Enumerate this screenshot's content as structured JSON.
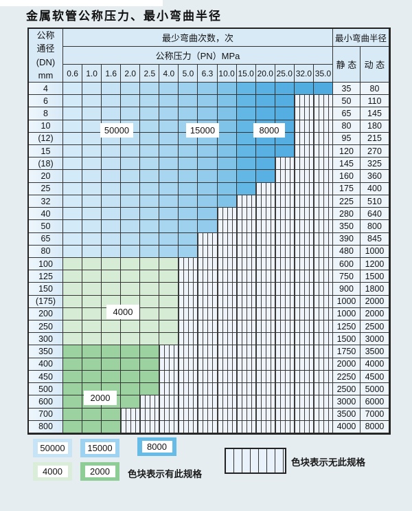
{
  "page": {
    "title": "金属软管公称压力、最小弯曲半径"
  },
  "table": {
    "left_header": {
      "lines": [
        "公称",
        "通径",
        "(DN)",
        "mm"
      ]
    },
    "cycles_header": "最少弯曲次数，次",
    "pressure_header": "公称压力（PN）MPa",
    "radius_header": "最小弯曲半径",
    "static_label": "静 态",
    "dynamic_label": "动 态",
    "pressure_columns": [
      "0.6",
      "1.0",
      "1.6",
      "2.0",
      "2.5",
      "4.0",
      "5.0",
      "6.3",
      "10.0",
      "15.0",
      "20.0",
      "25.0",
      "32.0",
      "35.0"
    ],
    "rows": [
      {
        "dn": "4",
        "static": "35",
        "dynamic": "80",
        "colored_through": 13,
        "zone": "blue"
      },
      {
        "dn": "6",
        "static": "50",
        "dynamic": "110",
        "colored_through": 11,
        "zone": "blue"
      },
      {
        "dn": "8",
        "static": "65",
        "dynamic": "145",
        "colored_through": 11,
        "zone": "blue"
      },
      {
        "dn": "10",
        "static": "80",
        "dynamic": "180",
        "colored_through": 11,
        "zone": "blue"
      },
      {
        "dn": "(12)",
        "static": "95",
        "dynamic": "215",
        "colored_through": 11,
        "zone": "blue"
      },
      {
        "dn": "15",
        "static": "120",
        "dynamic": "270",
        "colored_through": 11,
        "zone": "blue"
      },
      {
        "dn": "(18)",
        "static": "145",
        "dynamic": "325",
        "colored_through": 10,
        "zone": "blue"
      },
      {
        "dn": "20",
        "static": "160",
        "dynamic": "360",
        "colored_through": 10,
        "zone": "blue"
      },
      {
        "dn": "25",
        "static": "175",
        "dynamic": "400",
        "colored_through": 9,
        "zone": "blue"
      },
      {
        "dn": "32",
        "static": "225",
        "dynamic": "510",
        "colored_through": 8,
        "zone": "blue"
      },
      {
        "dn": "40",
        "static": "280",
        "dynamic": "640",
        "colored_through": 7,
        "zone": "blue"
      },
      {
        "dn": "50",
        "static": "350",
        "dynamic": "800",
        "colored_through": 7,
        "zone": "blue"
      },
      {
        "dn": "65",
        "static": "390",
        "dynamic": "845",
        "colored_through": 6,
        "zone": "blue"
      },
      {
        "dn": "80",
        "static": "480",
        "dynamic": "1000",
        "colored_through": 6,
        "zone": "blue"
      },
      {
        "dn": "100",
        "static": "600",
        "dynamic": "1200",
        "colored_through": 5,
        "zone": "4000"
      },
      {
        "dn": "125",
        "static": "750",
        "dynamic": "1500",
        "colored_through": 5,
        "zone": "4000"
      },
      {
        "dn": "150",
        "static": "900",
        "dynamic": "1800",
        "colored_through": 5,
        "zone": "4000"
      },
      {
        "dn": "(175)",
        "static": "1000",
        "dynamic": "2000",
        "colored_through": 5,
        "zone": "4000"
      },
      {
        "dn": "200",
        "static": "1000",
        "dynamic": "2000",
        "colored_through": 5,
        "zone": "4000"
      },
      {
        "dn": "250",
        "static": "1250",
        "dynamic": "2500",
        "colored_through": 5,
        "zone": "4000"
      },
      {
        "dn": "300",
        "static": "1500",
        "dynamic": "3000",
        "colored_through": 5,
        "zone": "4000"
      },
      {
        "dn": "350",
        "static": "1750",
        "dynamic": "3500",
        "colored_through": 4,
        "zone": "2000"
      },
      {
        "dn": "400",
        "static": "2000",
        "dynamic": "4000",
        "colored_through": 4,
        "zone": "2000"
      },
      {
        "dn": "450",
        "static": "2250",
        "dynamic": "4500",
        "colored_through": 4,
        "zone": "2000"
      },
      {
        "dn": "500",
        "static": "2500",
        "dynamic": "5000",
        "colored_through": 4,
        "zone": "2000"
      },
      {
        "dn": "600",
        "static": "3000",
        "dynamic": "6000",
        "colored_through": 3,
        "zone": "2000"
      },
      {
        "dn": "700",
        "static": "3500",
        "dynamic": "7000",
        "colored_through": 2,
        "zone": "2000"
      },
      {
        "dn": "800",
        "static": "4000",
        "dynamic": "8000",
        "colored_through": 2,
        "zone": "2000"
      }
    ]
  },
  "zones": {
    "blue_cycles_by_column": {
      "50000": [
        0,
        4
      ],
      "15000": [
        5,
        8
      ],
      "8000": [
        9,
        13
      ]
    },
    "green_cycles_by_rows": {
      "4000": [
        "100",
        "300"
      ],
      "2000": [
        "350",
        "800"
      ]
    }
  },
  "overlays": [
    {
      "text": "50000"
    },
    {
      "text": "15000"
    },
    {
      "text": "8000"
    },
    {
      "text": "4000"
    },
    {
      "text": "2000"
    }
  ],
  "legend": {
    "items": [
      {
        "value": "50000",
        "color": "#c7e4f7"
      },
      {
        "value": "15000",
        "color": "#9dd3f0"
      },
      {
        "value": "8000",
        "color": "#66bbe7"
      },
      {
        "value": "4000",
        "color": "#d9edd8"
      },
      {
        "value": "2000",
        "color": "#8fcd96"
      }
    ],
    "has_spec_text": "色块表示有此规格",
    "no_spec_text": "色块表示无此规格"
  },
  "colors": {
    "page_bg": "#e5edf1",
    "grid_line": "#333333",
    "header_bg": "#d9eaf7",
    "value_col_bg": "#edf5fb",
    "hatch_bg": "#eef4f9",
    "hatch_line": "#3d3d3d",
    "blue_columns": [
      "#d3eaf8",
      "#cde7f7",
      "#c6e3f5",
      "#bcdef3",
      "#b2daf1",
      "#a8d6f0",
      "#9dd1ee",
      "#92cbeb",
      "#80c3e8",
      "#62b7e4",
      "#58b1e2",
      "#54aee1",
      "#51ace0",
      "#4fabdf"
    ],
    "green_4000": "#d7ecd5",
    "green_2000": "#9bd2a0"
  }
}
